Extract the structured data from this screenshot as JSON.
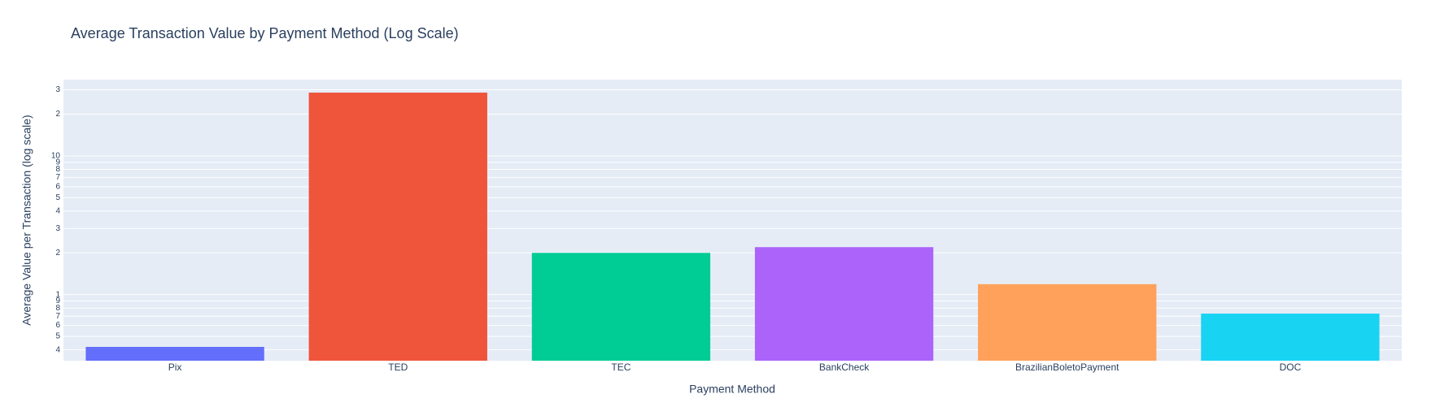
{
  "chart_data": {
    "type": "bar",
    "title": "Average Transaction Value by Payment Method (Log Scale)",
    "x_label": "Payment Method",
    "y_label": "Average Value per Transaction (log scale)",
    "categories": [
      "Pix",
      "TED",
      "TEC",
      "BankCheck",
      "BrazilianBoletoPayment",
      "DOC"
    ],
    "values": [
      0.42,
      28.6,
      2.0,
      2.2,
      1.19,
      0.73
    ],
    "colors": [
      "#636efa",
      "#ef553b",
      "#00cc96",
      "#ab63fa",
      "#ffa15a",
      "#19d3f3"
    ],
    "log_y": true,
    "grid": true,
    "ylim": [
      0.334,
      35.5
    ],
    "yticks": [
      {
        "value": 0.4,
        "label": "4"
      },
      {
        "value": 0.5,
        "label": "5"
      },
      {
        "value": 0.6,
        "label": "6"
      },
      {
        "value": 0.7,
        "label": "7"
      },
      {
        "value": 0.8,
        "label": "8"
      },
      {
        "value": 0.9,
        "label": "9"
      },
      1,
      2,
      3,
      4,
      5,
      6,
      7,
      8,
      9,
      10,
      {
        "value": 20,
        "label": "2"
      },
      {
        "value": 30,
        "label": "3"
      }
    ]
  }
}
